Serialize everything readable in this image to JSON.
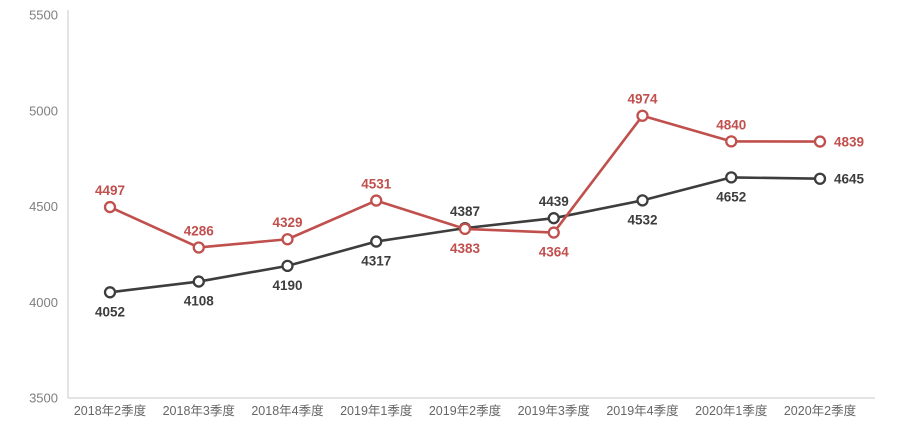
{
  "chart_data": {
    "type": "line",
    "title": "",
    "categories": [
      "2018年2季度",
      "2018年3季度",
      "2018年4季度",
      "2019年1季度",
      "2019年2季度",
      "2019年3季度",
      "2019年4季度",
      "2020年1季度",
      "2020年2季度"
    ],
    "series": [
      {
        "name": "black-series",
        "color": "#3d3d3d",
        "values": [
          4052,
          4108,
          4190,
          4317,
          4387,
          4439,
          4532,
          4652,
          4645
        ],
        "label_placement": [
          "below",
          "below",
          "below",
          "below",
          "above",
          "above",
          "below",
          "below",
          "right"
        ]
      },
      {
        "name": "red-series",
        "color": "#c0504d",
        "values": [
          4497,
          4286,
          4329,
          4531,
          4383,
          4364,
          4974,
          4840,
          4839
        ],
        "label_placement": [
          "above",
          "above",
          "above",
          "above",
          "below",
          "below",
          "above",
          "above",
          "right"
        ]
      }
    ],
    "ylim": [
      3500,
      5500
    ],
    "yticks": [
      3500,
      4000,
      4500,
      5000,
      5500
    ],
    "grid": false,
    "legend": "none",
    "axis_color": "#c9c9c9",
    "tick_label_color": "#7f7f7f"
  }
}
